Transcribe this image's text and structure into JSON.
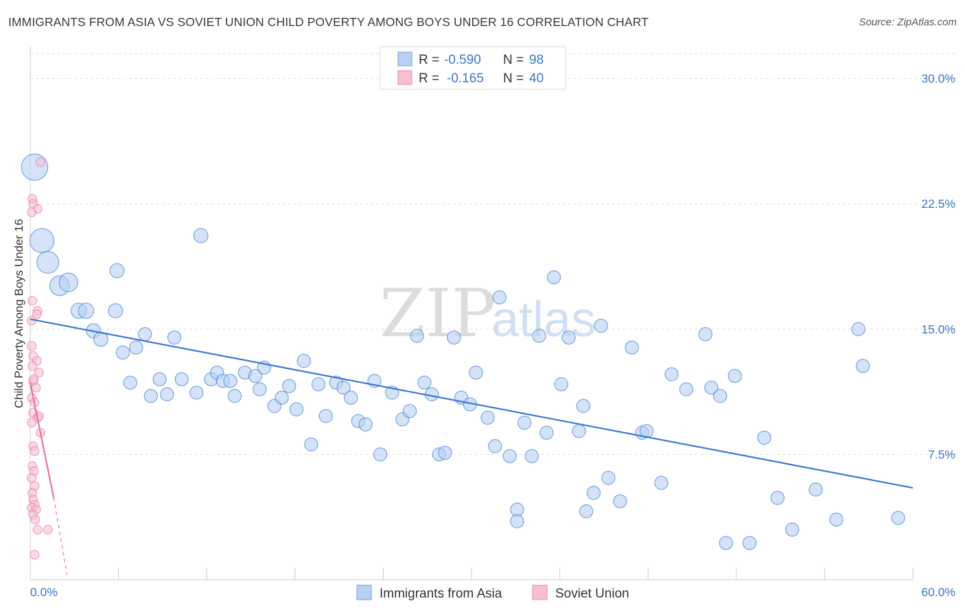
{
  "title": "IMMIGRANTS FROM ASIA VS SOVIET UNION CHILD POVERTY AMONG BOYS UNDER 16 CORRELATION CHART",
  "source": "Source: ZipAtlas.com",
  "watermark": {
    "left": "ZIP",
    "right": "atlas"
  },
  "colors": {
    "blue": "#3b78d4",
    "blue_fill": "#b8d1f3",
    "pink": "#e9719c",
    "pink_fill": "#f6bfd2",
    "accent_text": "#3b78c4"
  },
  "chart_data": {
    "type": "scatter",
    "title": "IMMIGRANTS FROM ASIA VS SOVIET UNION CHILD POVERTY AMONG BOYS UNDER 16 CORRELATION CHART",
    "xlabel": "",
    "ylabel": "Child Poverty Among Boys Under 16",
    "xlim": [
      0,
      60
    ],
    "ylim": [
      0,
      31.5
    ],
    "x_tick_labels": [
      "0.0%",
      "60.0%"
    ],
    "y_ticks": [
      7.5,
      15,
      22.5,
      30
    ],
    "y_tick_labels": [
      "7.5%",
      "15.0%",
      "22.5%",
      "30.0%"
    ],
    "grid": true,
    "legend_position": "bottom-center",
    "stats": [
      {
        "r_label": "R =",
        "r": "-0.590",
        "n_label": "N =",
        "n": "98"
      },
      {
        "r_label": "R =",
        "r": "-0.165",
        "n_label": "N =",
        "n": "40"
      }
    ],
    "series": [
      {
        "name": "Immigrants from Asia",
        "color": "#3b78d4",
        "fill": "#b8d1f3",
        "trend": {
          "x": [
            0,
            60
          ],
          "y": [
            15.6,
            5.5
          ]
        },
        "points": [
          [
            0.3,
            24.7,
            2.4
          ],
          [
            0.8,
            20.3,
            2.2
          ],
          [
            1.2,
            19.0,
            2.0
          ],
          [
            2.0,
            17.6,
            1.8
          ],
          [
            2.6,
            17.8,
            1.7
          ],
          [
            3.3,
            16.1,
            1.4
          ],
          [
            3.8,
            16.1,
            1.4
          ],
          [
            4.3,
            14.9,
            1.3
          ],
          [
            4.8,
            14.4,
            1.3
          ],
          [
            5.8,
            16.1,
            1.3
          ],
          [
            5.9,
            18.5,
            1.3
          ],
          [
            6.3,
            13.6,
            1.2
          ],
          [
            6.8,
            11.8,
            1.2
          ],
          [
            7.2,
            13.9,
            1.2
          ],
          [
            7.8,
            14.7,
            1.2
          ],
          [
            8.2,
            11.0,
            1.2
          ],
          [
            8.8,
            12.0,
            1.2
          ],
          [
            9.3,
            11.1,
            1.2
          ],
          [
            9.8,
            14.5,
            1.2
          ],
          [
            10.3,
            12.0,
            1.2
          ],
          [
            11.3,
            11.2,
            1.2
          ],
          [
            11.6,
            20.6,
            1.3
          ],
          [
            12.3,
            12.0,
            1.2
          ],
          [
            12.7,
            12.4,
            1.2
          ],
          [
            13.1,
            11.9,
            1.2
          ],
          [
            13.6,
            11.9,
            1.2
          ],
          [
            13.9,
            11.0,
            1.2
          ],
          [
            14.6,
            12.4,
            1.2
          ],
          [
            15.3,
            12.2,
            1.2
          ],
          [
            15.6,
            11.4,
            1.2
          ],
          [
            15.9,
            12.7,
            1.2
          ],
          [
            16.6,
            10.4,
            1.2
          ],
          [
            17.1,
            10.9,
            1.2
          ],
          [
            17.6,
            11.6,
            1.2
          ],
          [
            18.1,
            10.2,
            1.2
          ],
          [
            18.6,
            13.1,
            1.2
          ],
          [
            19.1,
            8.1,
            1.2
          ],
          [
            19.6,
            11.7,
            1.2
          ],
          [
            20.1,
            9.8,
            1.2
          ],
          [
            20.8,
            11.8,
            1.2
          ],
          [
            21.3,
            11.5,
            1.2
          ],
          [
            21.8,
            10.9,
            1.2
          ],
          [
            22.3,
            9.5,
            1.2
          ],
          [
            22.8,
            9.3,
            1.2
          ],
          [
            23.4,
            11.9,
            1.2
          ],
          [
            23.8,
            7.5,
            1.2
          ],
          [
            24.6,
            11.2,
            1.2
          ],
          [
            25.3,
            9.6,
            1.2
          ],
          [
            25.8,
            10.1,
            1.2
          ],
          [
            26.3,
            14.6,
            1.2
          ],
          [
            26.8,
            11.8,
            1.2
          ],
          [
            27.3,
            11.1,
            1.2
          ],
          [
            27.8,
            7.5,
            1.2
          ],
          [
            28.2,
            7.6,
            1.2
          ],
          [
            28.8,
            14.5,
            1.2
          ],
          [
            29.3,
            10.9,
            1.2
          ],
          [
            29.9,
            10.5,
            1.2
          ],
          [
            30.3,
            12.4,
            1.2
          ],
          [
            31.1,
            9.7,
            1.2
          ],
          [
            31.6,
            8.0,
            1.2
          ],
          [
            31.9,
            16.9,
            1.2
          ],
          [
            32.6,
            7.4,
            1.2
          ],
          [
            33.1,
            4.2,
            1.2
          ],
          [
            33.6,
            9.4,
            1.2
          ],
          [
            34.1,
            7.4,
            1.2
          ],
          [
            34.6,
            14.6,
            1.2
          ],
          [
            35.1,
            8.8,
            1.2
          ],
          [
            35.6,
            18.1,
            1.2
          ],
          [
            36.1,
            11.7,
            1.2
          ],
          [
            36.6,
            14.5,
            1.2
          ],
          [
            37.3,
            8.9,
            1.2
          ],
          [
            37.6,
            10.4,
            1.2
          ],
          [
            37.8,
            4.1,
            1.2
          ],
          [
            38.3,
            5.2,
            1.2
          ],
          [
            38.8,
            15.2,
            1.2
          ],
          [
            39.3,
            6.1,
            1.2
          ],
          [
            40.1,
            4.7,
            1.2
          ],
          [
            40.9,
            13.9,
            1.2
          ],
          [
            41.6,
            8.8,
            1.2
          ],
          [
            41.9,
            8.9,
            1.2
          ],
          [
            42.9,
            5.8,
            1.2
          ],
          [
            43.6,
            12.3,
            1.2
          ],
          [
            44.6,
            11.4,
            1.2
          ],
          [
            45.9,
            14.7,
            1.2
          ],
          [
            46.3,
            11.5,
            1.2
          ],
          [
            46.9,
            11.0,
            1.2
          ],
          [
            47.3,
            2.2,
            1.2
          ],
          [
            47.9,
            12.2,
            1.2
          ],
          [
            48.9,
            2.2,
            1.2
          ],
          [
            49.9,
            8.5,
            1.2
          ],
          [
            50.8,
            4.9,
            1.2
          ],
          [
            51.8,
            3.0,
            1.2
          ],
          [
            53.4,
            5.4,
            1.2
          ],
          [
            54.8,
            3.6,
            1.2
          ],
          [
            56.3,
            15.0,
            1.2
          ],
          [
            56.6,
            12.8,
            1.2
          ],
          [
            59.0,
            3.7,
            1.2
          ],
          [
            33.1,
            3.5,
            1.2
          ]
        ]
      },
      {
        "name": "Soviet Union",
        "color": "#e9719c",
        "fill": "#f6bfd2",
        "trend": {
          "x": [
            0,
            1.6
          ],
          "y": [
            11.8,
            4.9
          ]
        },
        "trend_dashed": {
          "x": [
            1.6,
            2.5
          ],
          "y": [
            4.9,
            0.3
          ]
        },
        "points": [
          [
            0.15,
            22.8,
            0.8
          ],
          [
            0.2,
            22.5,
            0.8
          ],
          [
            0.5,
            22.2,
            0.8
          ],
          [
            0.1,
            22.0,
            0.8
          ],
          [
            0.7,
            25.0,
            0.8
          ],
          [
            0.15,
            16.7,
            0.8
          ],
          [
            0.5,
            16.1,
            0.8
          ],
          [
            0.1,
            15.5,
            0.8
          ],
          [
            0.2,
            13.4,
            0.8
          ],
          [
            0.45,
            13.1,
            0.8
          ],
          [
            0.15,
            12.8,
            0.8
          ],
          [
            0.6,
            12.4,
            0.8
          ],
          [
            0.2,
            11.9,
            0.8
          ],
          [
            0.4,
            11.5,
            0.8
          ],
          [
            0.1,
            10.9,
            0.8
          ],
          [
            0.3,
            10.6,
            0.8
          ],
          [
            0.2,
            10.0,
            0.8
          ],
          [
            0.5,
            9.7,
            0.8
          ],
          [
            0.1,
            9.4,
            0.8
          ],
          [
            0.7,
            8.8,
            0.8
          ],
          [
            0.2,
            8.0,
            0.8
          ],
          [
            0.3,
            7.7,
            0.8
          ],
          [
            0.15,
            6.8,
            0.8
          ],
          [
            0.25,
            6.5,
            0.8
          ],
          [
            0.1,
            6.1,
            0.8
          ],
          [
            0.3,
            5.6,
            0.8
          ],
          [
            0.15,
            5.2,
            0.8
          ],
          [
            0.2,
            4.8,
            0.8
          ],
          [
            0.3,
            4.5,
            0.8
          ],
          [
            0.1,
            4.3,
            0.8
          ],
          [
            0.4,
            4.2,
            0.8
          ],
          [
            0.2,
            3.9,
            0.8
          ],
          [
            0.35,
            3.6,
            0.8
          ],
          [
            0.5,
            3.0,
            0.8
          ],
          [
            1.2,
            3.0,
            0.8
          ],
          [
            0.3,
            1.5,
            0.8
          ],
          [
            0.6,
            9.8,
            0.8
          ],
          [
            0.25,
            12.0,
            0.8
          ],
          [
            0.45,
            15.9,
            0.8
          ],
          [
            0.1,
            14.0,
            0.8
          ]
        ]
      }
    ]
  }
}
